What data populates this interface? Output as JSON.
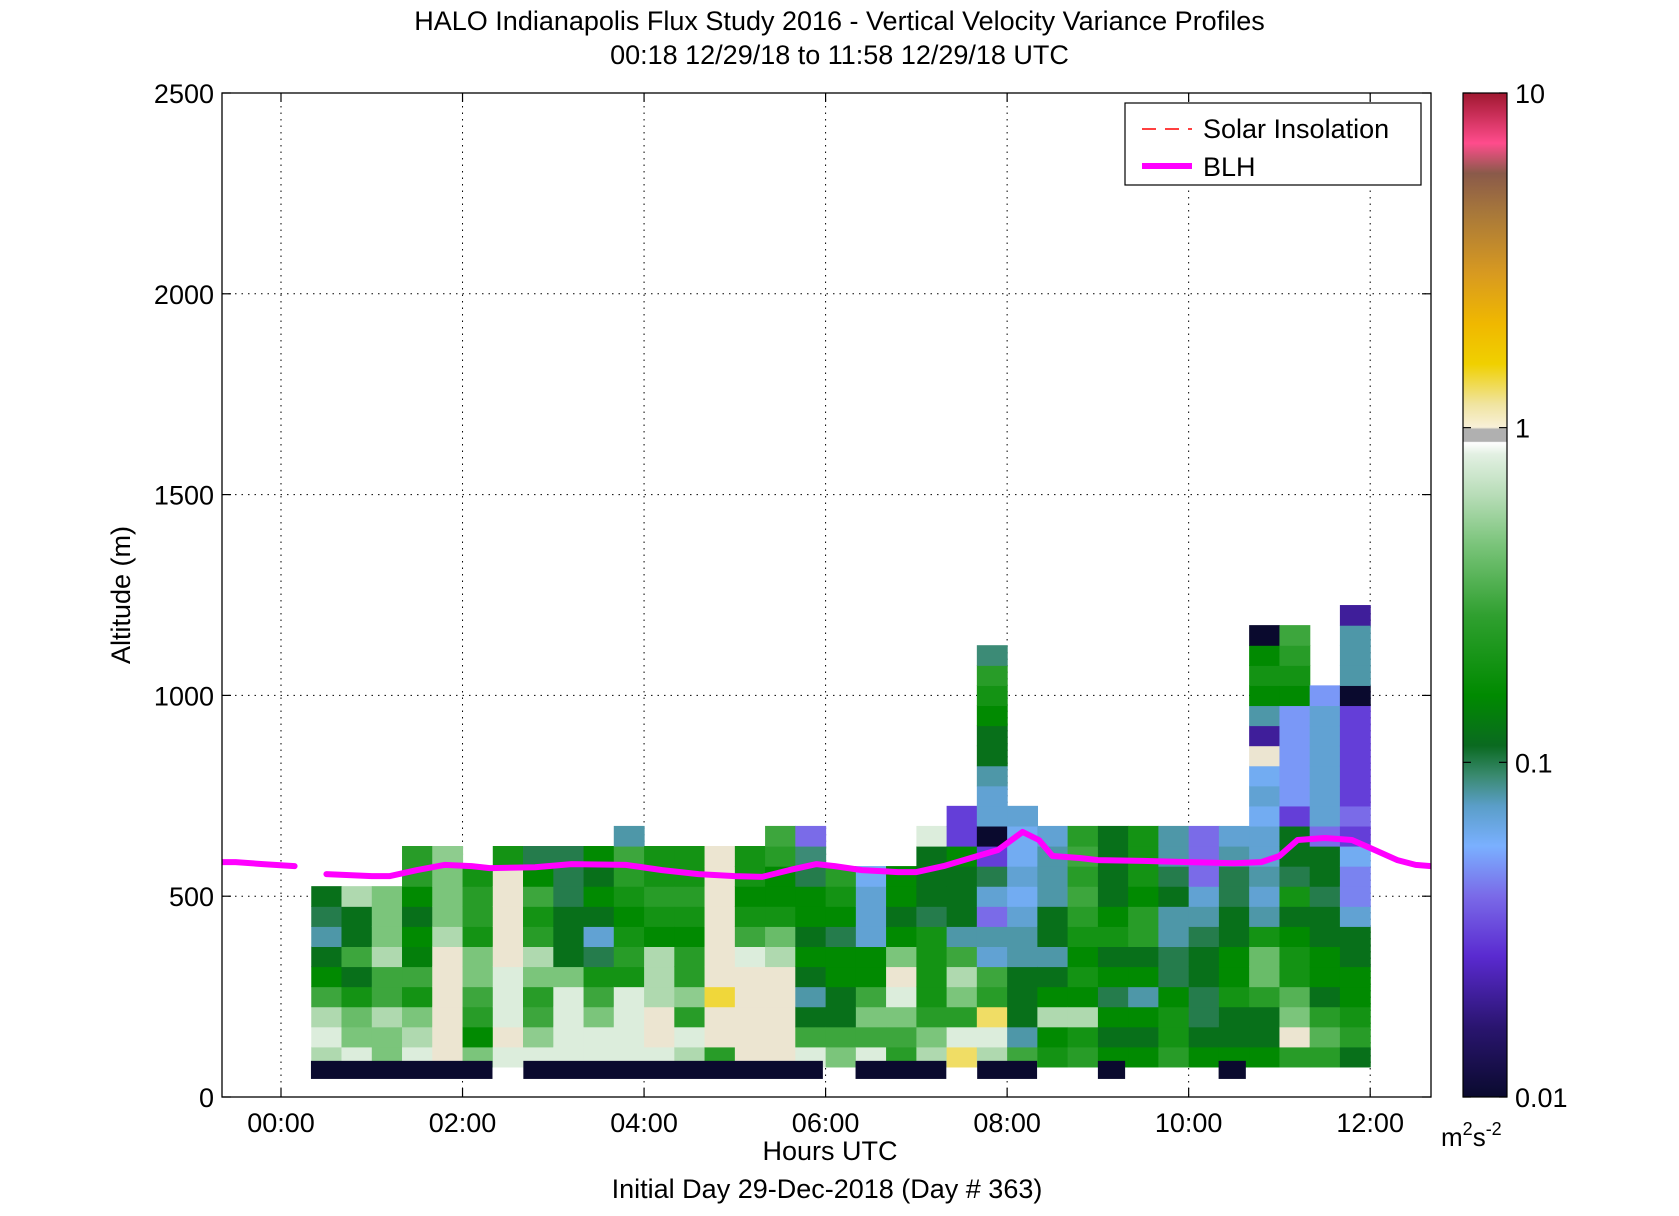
{
  "title_line1": "HALO Indianapolis Flux Study 2016 - Vertical Velocity Variance Profiles",
  "title_line2": "00:18 12/29/18 to 11:58 12/29/18  UTC",
  "xlabel": "Hours UTC",
  "subtitle": "Initial Day 29-Dec-2018 (Day # 363)",
  "ylabel": "Altitude (m)",
  "colorbar_unit_base": "m",
  "colorbar_unit_sup1": "2",
  "colorbar_unit_mid": "s",
  "colorbar_unit_sup2": "-2",
  "legend": {
    "solar_label": "Solar Insolation",
    "blh_label": "BLH",
    "solar_color": "#ff0000",
    "blh_color": "#ff00ff"
  },
  "chart_data": {
    "type": "heatmap",
    "x_unit": "hours UTC",
    "y_unit": "m",
    "xlim": [
      -0.65,
      12.67
    ],
    "ylim": [
      0,
      2500
    ],
    "x_ticks": [
      0,
      2,
      4,
      6,
      8,
      10,
      12
    ],
    "x_tick_labels": [
      "00:00",
      "02:00",
      "04:00",
      "06:00",
      "08:00",
      "10:00",
      "12:00"
    ],
    "y_ticks": [
      0,
      500,
      1000,
      1500,
      2000,
      2500
    ],
    "y_tick_labels": [
      "0",
      "500",
      "1000",
      "1500",
      "2000",
      "2500"
    ],
    "grid": true,
    "legend_position": "top-right",
    "colorbar": {
      "scale": "log",
      "range": [
        0.01,
        10
      ],
      "tick_values": [
        0.01,
        0.1,
        1,
        10
      ],
      "tick_labels": [
        "0.01",
        "0.1",
        "1",
        "10"
      ],
      "stops": [
        [
          0.0,
          "#0a0a2e"
        ],
        [
          0.07,
          "#2a1570"
        ],
        [
          0.14,
          "#5a2ad0"
        ],
        [
          0.2,
          "#7a6ae8"
        ],
        [
          0.25,
          "#7ab0ff"
        ],
        [
          0.29,
          "#5a9ec8"
        ],
        [
          0.32,
          "#3a8a70"
        ],
        [
          0.35,
          "#0a6a20"
        ],
        [
          0.4,
          "#008a00"
        ],
        [
          0.48,
          "#30a030"
        ],
        [
          0.55,
          "#7ac47a"
        ],
        [
          0.6,
          "#b8ddb8"
        ],
        [
          0.64,
          "#e2f0e2"
        ],
        [
          0.652,
          "#ffffff"
        ],
        [
          0.653,
          "#b0b0b0"
        ],
        [
          0.665,
          "#b0b0b0"
        ],
        [
          0.667,
          "#f8f0d8"
        ],
        [
          0.69,
          "#f0e4a0"
        ],
        [
          0.73,
          "#f0d000"
        ],
        [
          0.77,
          "#f0b800"
        ],
        [
          0.82,
          "#d89a20"
        ],
        [
          0.88,
          "#a8783a"
        ],
        [
          0.92,
          "#8a5a4a"
        ],
        [
          0.95,
          "#ff4c8c"
        ],
        [
          1.0,
          "#a01830"
        ]
      ]
    },
    "heatmap_bin_height_m": 50,
    "heatmap_bin_width_h": 0.3333,
    "heatmap_columns": [
      {
        "x": 0.5,
        "y0": 100,
        "v": [
          0.6,
          0.8,
          0.6,
          0.3,
          0.16,
          0.12,
          0.08,
          0.1,
          0.12
        ]
      },
      {
        "x": 0.833,
        "y0": 100,
        "v": [
          0.8,
          0.45,
          0.4,
          0.2,
          0.12,
          0.3,
          0.12,
          0.12,
          0.6
        ]
      },
      {
        "x": 1.167,
        "y0": 100,
        "v": [
          0.45,
          0.45,
          0.6,
          0.3,
          0.3,
          0.6,
          0.45,
          0.45,
          0.45
        ]
      },
      {
        "x": 1.5,
        "y0": 100,
        "v": [
          0.8,
          0.6,
          0.45,
          0.2,
          0.3,
          0.14,
          0.16,
          0.12,
          0.16,
          0.25,
          0.25
        ]
      },
      {
        "x": 1.833,
        "y0": 100,
        "v": [
          1,
          1,
          1,
          1,
          1,
          1,
          0.6,
          0.45,
          0.45,
          0.45,
          0.5
        ]
      },
      {
        "x": 2.167,
        "y0": 100,
        "v": [
          0.45,
          0.16,
          0.25,
          0.3,
          0.45,
          0.45,
          0.2,
          0.25,
          0.25,
          0.2
        ]
      },
      {
        "x": 2.5,
        "y0": 100,
        "v": [
          0.8,
          1,
          0.8,
          0.8,
          0.8,
          1,
          1,
          1,
          1,
          1,
          0.2
        ]
      },
      {
        "x": 2.833,
        "y0": 100,
        "v": [
          0.8,
          0.5,
          0.3,
          0.25,
          0.45,
          0.6,
          0.25,
          0.2,
          0.3,
          0.16,
          0.1
        ]
      },
      {
        "x": 3.167,
        "y0": 100,
        "v": [
          0.8,
          0.8,
          0.8,
          0.8,
          0.45,
          0.12,
          0.12,
          0.12,
          0.1,
          0.1,
          0.1
        ]
      },
      {
        "x": 3.5,
        "y0": 100,
        "v": [
          0.8,
          0.8,
          0.45,
          0.3,
          0.2,
          0.1,
          0.07,
          0.12,
          0.16,
          0.12,
          0.16
        ]
      },
      {
        "x": 3.833,
        "y0": 100,
        "v": [
          0.8,
          0.8,
          0.8,
          0.8,
          0.2,
          0.25,
          0.2,
          0.16,
          0.2,
          0.25,
          0.3,
          0.08
        ]
      },
      {
        "x": 4.167,
        "y0": 100,
        "v": [
          0.8,
          1,
          1,
          0.6,
          0.6,
          0.6,
          0.16,
          0.2,
          0.25,
          0.2,
          0.2
        ]
      },
      {
        "x": 4.5,
        "y0": 100,
        "v": [
          0.6,
          0.8,
          0.25,
          0.5,
          0.25,
          0.25,
          0.16,
          0.2,
          0.25,
          0.2,
          0.2
        ]
      },
      {
        "x": 4.833,
        "y0": 100,
        "v": [
          0.25,
          1,
          1,
          1.4,
          1,
          1,
          1,
          1,
          1,
          1,
          1
        ]
      },
      {
        "x": 5.167,
        "y0": 100,
        "v": [
          1,
          1,
          1,
          1,
          1,
          0.8,
          0.3,
          0.2,
          0.16,
          0.2,
          0.2
        ]
      },
      {
        "x": 5.5,
        "y0": 100,
        "v": [
          1,
          1,
          1,
          1,
          1,
          0.6,
          0.4,
          0.2,
          0.16,
          0.16,
          0.25,
          0.3
        ]
      },
      {
        "x": 5.833,
        "y0": 100,
        "v": [
          0.8,
          0.3,
          0.12,
          0.08,
          0.12,
          0.16,
          0.12,
          0.16,
          0.16,
          0.1,
          0.09,
          0.04
        ]
      },
      {
        "x": 6.167,
        "y0": 100,
        "v": [
          0.45,
          0.3,
          0.12,
          0.12,
          0.16,
          0.16,
          0.1,
          0.16,
          0.2,
          0.25
        ]
      },
      {
        "x": 6.5,
        "y0": 100,
        "v": [
          0.8,
          0.3,
          0.45,
          0.3,
          0.16,
          0.16,
          0.07,
          0.07,
          0.07,
          0.06
        ]
      },
      {
        "x": 6.833,
        "y0": 100,
        "v": [
          0.25,
          0.3,
          0.45,
          0.8,
          1,
          0.45,
          0.16,
          0.12,
          0.16,
          0.16
        ]
      },
      {
        "x": 7.167,
        "y0": 100,
        "v": [
          0.6,
          0.45,
          0.25,
          0.2,
          0.2,
          0.2,
          0.2,
          0.1,
          0.12,
          0.12,
          0.12,
          0.8
        ]
      },
      {
        "x": 7.5,
        "y0": 100,
        "v": [
          1.3,
          0.8,
          0.25,
          0.45,
          0.6,
          0.3,
          0.08,
          0.12,
          0.12,
          0.12,
          0.16,
          0.03,
          0.03
        ]
      },
      {
        "x": 7.833,
        "y0": 100,
        "v": [
          0.6,
          0.8,
          1.3,
          0.25,
          0.3,
          0.07,
          0.08,
          0.04,
          0.07,
          0.1,
          0.03,
          0.01,
          0.07,
          0.07,
          0.08,
          0.12,
          0.12,
          0.16,
          0.2,
          0.25,
          0.09
        ]
      },
      {
        "x": 8.167,
        "y0": 100,
        "v": [
          0.3,
          0.08,
          0.12,
          0.12,
          0.12,
          0.08,
          0.08,
          0.07,
          0.06,
          0.07,
          0.06,
          0.06,
          0.07
        ]
      },
      {
        "x": 8.5,
        "y0": 100,
        "v": [
          0.2,
          0.16,
          0.6,
          0.16,
          0.12,
          0.08,
          0.12,
          0.12,
          0.08,
          0.08,
          0.08,
          0.07
        ]
      },
      {
        "x": 8.833,
        "y0": 100,
        "v": [
          0.25,
          0.2,
          0.6,
          0.16,
          0.2,
          0.16,
          0.2,
          0.25,
          0.3,
          0.25,
          0.3,
          0.25
        ]
      },
      {
        "x": 9.167,
        "y0": 100,
        "v": [
          0.16,
          0.12,
          0.16,
          0.1,
          0.16,
          0.12,
          0.2,
          0.16,
          0.12,
          0.12,
          0.12,
          0.12
        ]
      },
      {
        "x": 9.5,
        "y0": 100,
        "v": [
          0.16,
          0.12,
          0.16,
          0.08,
          0.16,
          0.12,
          0.25,
          0.25,
          0.16,
          0.2,
          0.2,
          0.2
        ]
      },
      {
        "x": 9.833,
        "y0": 100,
        "v": [
          0.25,
          0.2,
          0.2,
          0.16,
          0.1,
          0.1,
          0.08,
          0.08,
          0.12,
          0.1,
          0.08,
          0.08
        ]
      },
      {
        "x": 10.167,
        "y0": 100,
        "v": [
          0.16,
          0.12,
          0.1,
          0.1,
          0.12,
          0.12,
          0.1,
          0.08,
          0.07,
          0.04,
          0.04,
          0.04
        ]
      },
      {
        "x": 10.5,
        "y0": 100,
        "v": [
          0.16,
          0.12,
          0.12,
          0.2,
          0.16,
          0.16,
          0.12,
          0.12,
          0.1,
          0.1,
          0.08,
          0.07
        ]
      },
      {
        "x": 10.833,
        "y0": 100,
        "v": [
          0.16,
          0.12,
          0.12,
          0.25,
          0.4,
          0.4,
          0.2,
          0.08,
          0.07,
          0.08,
          0.07,
          0.07,
          0.06,
          0.07,
          0.06,
          1,
          0.02,
          0.08,
          0.16,
          0.2,
          0.16,
          0.01
        ]
      },
      {
        "x": 11.167,
        "y0": 100,
        "v": [
          0.25,
          1,
          0.45,
          0.35,
          0.2,
          0.2,
          0.16,
          0.12,
          0.2,
          0.1,
          0.12,
          0.12,
          0.03,
          0.05,
          0.05,
          0.05,
          0.05,
          0.05,
          0.16,
          0.2,
          0.25,
          0.3
        ]
      },
      {
        "x": 11.5,
        "y0": 100,
        "v": [
          0.25,
          0.35,
          0.25,
          0.12,
          0.16,
          0.16,
          0.12,
          0.12,
          0.1,
          0.12,
          0.12,
          0.04,
          0.07,
          0.07,
          0.07,
          0.07,
          0.07,
          0.07,
          0.05
        ]
      },
      {
        "x": 11.833,
        "y0": 100,
        "v": [
          0.12,
          0.25,
          0.2,
          0.16,
          0.16,
          0.12,
          0.12,
          0.07,
          0.045,
          0.045,
          0.06,
          0.03,
          0.04,
          0.03,
          0.03,
          0.03,
          0.03,
          0.03,
          0.01,
          0.08,
          0.08,
          0.08,
          0.02
        ]
      }
    ],
    "night_bars": [
      [
        0.33,
        2.33
      ],
      [
        2.67,
        5.97
      ],
      [
        6.33,
        7.33
      ],
      [
        7.67,
        8.33
      ],
      [
        9.0,
        9.3
      ],
      [
        10.33,
        10.63
      ]
    ],
    "blh_segments": [
      [
        [
          -0.65,
          585
        ],
        [
          -0.5,
          585
        ],
        [
          -0.2,
          580
        ],
        [
          0.15,
          575
        ]
      ],
      [
        [
          0.5,
          555
        ],
        [
          1.0,
          550
        ],
        [
          1.2,
          550
        ],
        [
          1.5,
          565
        ],
        [
          1.8,
          578
        ],
        [
          2.1,
          575
        ],
        [
          2.3,
          570
        ],
        [
          2.8,
          572
        ],
        [
          3.2,
          580
        ],
        [
          3.8,
          578
        ],
        [
          4.2,
          565
        ],
        [
          4.6,
          555
        ],
        [
          5.0,
          550
        ],
        [
          5.3,
          548
        ],
        [
          5.6,
          565
        ],
        [
          5.9,
          580
        ],
        [
          6.1,
          575
        ],
        [
          6.4,
          565
        ],
        [
          6.8,
          560
        ],
        [
          7.0,
          560
        ],
        [
          7.3,
          575
        ],
        [
          7.6,
          595
        ],
        [
          7.9,
          615
        ],
        [
          8.17,
          660
        ],
        [
          8.35,
          640
        ],
        [
          8.5,
          600
        ],
        [
          8.8,
          595
        ],
        [
          9.0,
          590
        ],
        [
          9.5,
          588
        ],
        [
          10.0,
          585
        ],
        [
          10.5,
          582
        ],
        [
          10.8,
          585
        ],
        [
          11.0,
          600
        ],
        [
          11.2,
          640
        ],
        [
          11.5,
          645
        ],
        [
          11.8,
          640
        ],
        [
          12.0,
          620
        ],
        [
          12.3,
          590
        ],
        [
          12.5,
          578
        ],
        [
          12.67,
          575
        ]
      ]
    ]
  }
}
